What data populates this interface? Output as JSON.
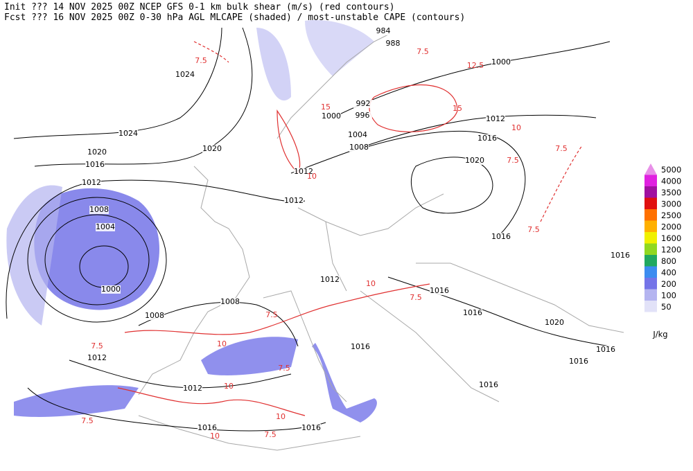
{
  "header": {
    "line1": "Init  ??? 14 NOV 2025 00Z  NCEP GFS 0-1 km bulk shear (m/s) (red contours)",
    "line2": "Fcst ??? 16 NOV 2025 00Z  0-30 hPa AGL MLCAPE (shaded) / most-unstable CAPE (contours)"
  },
  "legend": {
    "unit": "J/kg",
    "levels": [
      {
        "label": 5000,
        "color": "#e890e8"
      },
      {
        "label": 4000,
        "color": "#e020e0"
      },
      {
        "label": 3500,
        "color": "#a010a0"
      },
      {
        "label": 3000,
        "color": "#e01010"
      },
      {
        "label": 2500,
        "color": "#ff7000"
      },
      {
        "label": 2000,
        "color": "#ffb000"
      },
      {
        "label": 1600,
        "color": "#f0f000"
      },
      {
        "label": 1200,
        "color": "#90d820"
      },
      {
        "label": 800,
        "color": "#20a860"
      },
      {
        "label": 400,
        "color": "#3c8cf0"
      },
      {
        "label": 200,
        "color": "#7474e8"
      },
      {
        "label": 100,
        "color": "#b4b4f0"
      },
      {
        "label": 50,
        "color": "#e2e2f8"
      }
    ]
  },
  "isobar_labels": [
    "984",
    "988",
    "1000",
    "1024",
    "992",
    "996",
    "1000",
    "1004",
    "1012",
    "1016",
    "1008",
    "1020",
    "1024",
    "1020",
    "1016",
    "1020",
    "1012",
    "1012",
    "1012",
    "1008",
    "1004",
    "1016",
    "1016",
    "1000",
    "1012",
    "1016",
    "1008",
    "1008",
    "1016",
    "1020",
    "1016",
    "1012",
    "1016",
    "1016",
    "1012",
    "1016",
    "1016",
    "1016"
  ],
  "shear_labels": [
    "7.5",
    "7.5",
    "12.5",
    "15",
    "15",
    "10",
    "7.5",
    "7.5",
    "10",
    "7.5",
    "10",
    "7.5",
    "7.5",
    "10",
    "7.5",
    "7.5",
    "7.5",
    "10",
    "10",
    "7.5",
    "10"
  ]
}
